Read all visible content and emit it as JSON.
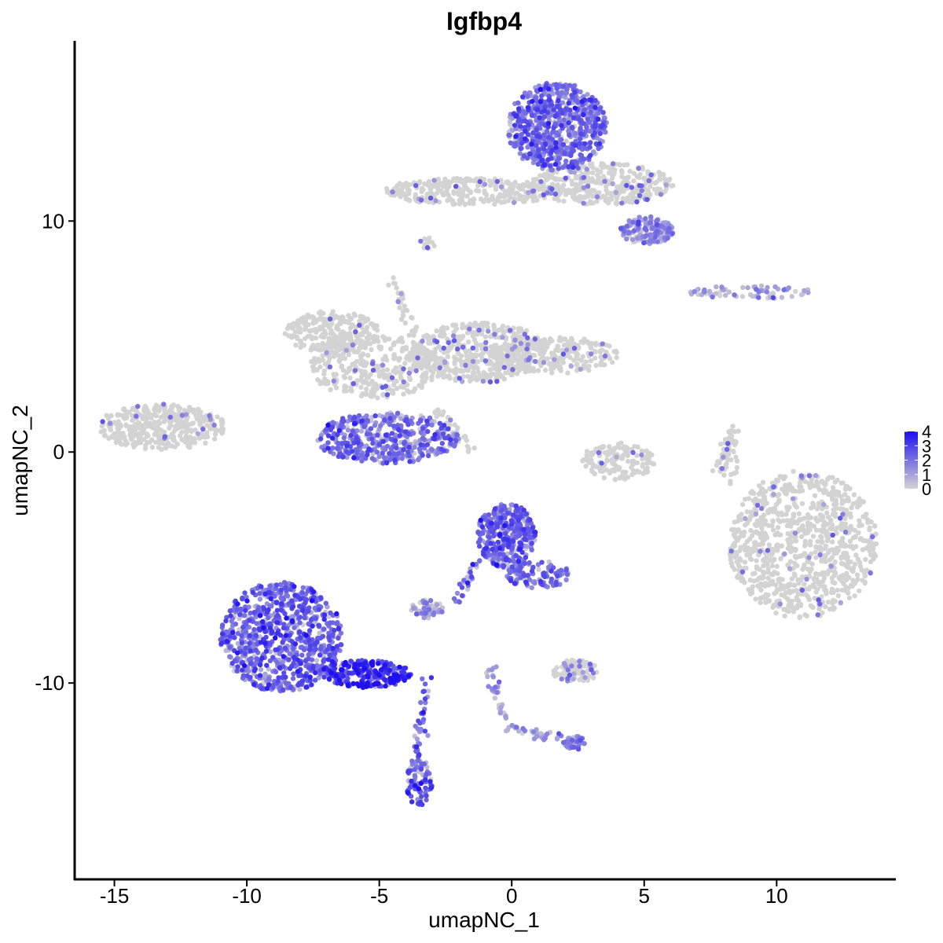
{
  "chart_data": {
    "type": "scatter",
    "title": "Igfbp4",
    "xlabel": "umapNC_1",
    "ylabel": "umapNC_2",
    "xlim": [
      -16.5,
      14.5
    ],
    "ylim": [
      -18.5,
      17.8
    ],
    "xticks": [
      -15,
      -10,
      -5,
      0,
      5,
      10
    ],
    "xtick_labels": [
      "-15",
      "-10",
      "-5",
      "0",
      "5",
      "10"
    ],
    "yticks": [
      -10,
      0,
      10
    ],
    "ytick_labels": [
      "-10",
      "0",
      "10"
    ],
    "grid": false,
    "legend": {
      "position": "right",
      "type": "colorbar",
      "min": 0,
      "max": 4,
      "ticks": [
        0,
        1,
        2,
        3,
        4
      ],
      "tick_labels": [
        "0",
        "1",
        "2",
        "3",
        "4"
      ],
      "low_color": "#d3d3d3",
      "high_color": "#1f0ff0"
    },
    "clusters": [
      {
        "cx": 1.7,
        "cy": 14.1,
        "rx": 1.9,
        "ry": 1.9,
        "n": 700,
        "expr": 2.0
      },
      {
        "cx": 3.4,
        "cy": 11.6,
        "rx": 2.7,
        "ry": 0.9,
        "n": 350,
        "expr": 0.15
      },
      {
        "cx": -1.5,
        "cy": 11.3,
        "rx": 3.3,
        "ry": 0.6,
        "n": 300,
        "expr": 0.1
      },
      {
        "cx": 5.1,
        "cy": 9.6,
        "rx": 1.0,
        "ry": 0.6,
        "n": 150,
        "expr": 1.3
      },
      {
        "cx": -6.8,
        "cy": 5.2,
        "rx": 1.8,
        "ry": 0.9,
        "n": 250,
        "expr": 0.05
      },
      {
        "cx": -5.2,
        "cy": 3.7,
        "rx": 2.4,
        "ry": 1.4,
        "n": 350,
        "expr": 0.1
      },
      {
        "cx": -1.2,
        "cy": 4.3,
        "rx": 2.6,
        "ry": 1.3,
        "n": 450,
        "expr": 0.15
      },
      {
        "cx": 1.6,
        "cy": 4.2,
        "rx": 2.4,
        "ry": 0.8,
        "n": 250,
        "expr": 0.1
      },
      {
        "cx": -4.7,
        "cy": 0.6,
        "rx": 2.7,
        "ry": 1.1,
        "n": 450,
        "expr": 2.0
      },
      {
        "cx": -13.2,
        "cy": 1.1,
        "rx": 2.4,
        "ry": 1.0,
        "n": 400,
        "expr": 0.05
      },
      {
        "cx": 11.0,
        "cy": -4.0,
        "rx": 2.8,
        "ry": 3.2,
        "n": 900,
        "expr": 0.05
      },
      {
        "cx": 4.0,
        "cy": -0.4,
        "rx": 1.4,
        "ry": 0.8,
        "n": 150,
        "expr": 0.05
      },
      {
        "cx": 9.0,
        "cy": 6.9,
        "rx": 2.4,
        "ry": 0.3,
        "n": 70,
        "expr": 0.7
      },
      {
        "cx": -0.2,
        "cy": -3.6,
        "rx": 1.1,
        "ry": 1.4,
        "n": 350,
        "expr": 2.2
      },
      {
        "cx": 1.0,
        "cy": -5.3,
        "rx": 1.2,
        "ry": 0.6,
        "n": 100,
        "expr": 2.0
      },
      {
        "cx": -8.7,
        "cy": -8.0,
        "rx": 2.3,
        "ry": 2.4,
        "n": 800,
        "expr": 2.2
      },
      {
        "cx": -5.5,
        "cy": -9.6,
        "rx": 1.7,
        "ry": 0.6,
        "n": 250,
        "expr": 3.3
      },
      {
        "cx": -3.5,
        "cy": -14.3,
        "rx": 0.5,
        "ry": 1.0,
        "n": 80,
        "expr": 2.4
      },
      {
        "cx": -3.2,
        "cy": -6.8,
        "rx": 0.6,
        "ry": 0.4,
        "n": 60,
        "expr": 1.0
      },
      {
        "cx": 2.4,
        "cy": -12.6,
        "rx": 0.4,
        "ry": 0.3,
        "n": 40,
        "expr": 1.5
      },
      {
        "cx": 2.4,
        "cy": -9.5,
        "rx": 0.9,
        "ry": 0.5,
        "n": 100,
        "expr": 0.3
      },
      {
        "cx": 8.2,
        "cy": -0.3,
        "rx": 0.4,
        "ry": 1.1,
        "n": 40,
        "expr": 0.1
      },
      {
        "cx": -3.2,
        "cy": 9.0,
        "rx": 0.3,
        "ry": 0.3,
        "n": 15,
        "expr": 0.3
      }
    ],
    "trails": [
      {
        "x1": -4.5,
        "y1": 7.6,
        "x2": -3.2,
        "y2": 3.5,
        "n": 50,
        "expr": 0.1
      },
      {
        "x1": -3.2,
        "y1": -9.8,
        "x2": -3.6,
        "y2": -13.5,
        "n": 40,
        "expr": 2.0
      },
      {
        "x1": -1.3,
        "y1": -4.8,
        "x2": -2.1,
        "y2": -6.6,
        "n": 30,
        "expr": 1.8
      },
      {
        "x1": -0.8,
        "y1": -9.2,
        "x2": -0.3,
        "y2": -11.9,
        "n": 30,
        "expr": 1.2
      },
      {
        "x1": -0.3,
        "y1": -12.0,
        "x2": 2.3,
        "y2": -12.4,
        "n": 40,
        "expr": 1.2
      },
      {
        "x1": -2.8,
        "y1": 1.8,
        "x2": -1.4,
        "y2": -0.2,
        "n": 30,
        "expr": 0.1
      },
      {
        "x1": 8.5,
        "y1": 1.2,
        "x2": 7.8,
        "y2": -0.8,
        "n": 25,
        "expr": 0.1
      }
    ]
  }
}
